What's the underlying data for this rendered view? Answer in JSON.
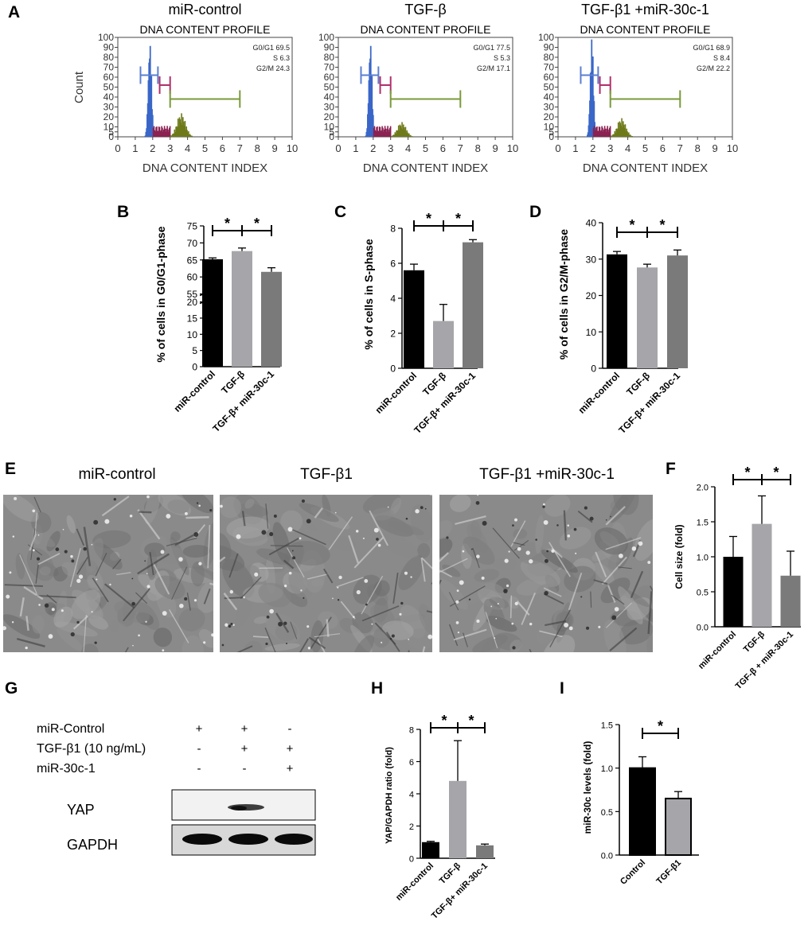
{
  "colors": {
    "black_bar": "#000000",
    "light_gray_bar": "#a6a6aa",
    "mid_gray_bar": "#7a7a7a",
    "histogram_blue": "#3a66c8",
    "histogram_maroon": "#8b2252",
    "histogram_olive": "#6e7a1a",
    "marker_blue": "#5b7fd0",
    "marker_pink": "#b0306a",
    "marker_green": "#7a9a3a"
  },
  "panel_labels": {
    "A": "A",
    "B": "B",
    "C": "C",
    "D": "D",
    "E": "E",
    "F": "F",
    "G": "G",
    "H": "H",
    "I": "I"
  },
  "panel_a": {
    "plots": [
      {
        "title": "miR-control",
        "subtitle": "DNA CONTENT PROFILE",
        "xlabel": "DNA CONTENT INDEX",
        "ylabel": "Count",
        "stats": [
          "G0/G1 69.5",
          "S 6.3",
          "G2/M 24.3"
        ]
      },
      {
        "title": "TGF-β",
        "subtitle": "DNA CONTENT PROFILE",
        "xlabel": "DNA CONTENT INDEX",
        "ylabel": "",
        "stats": [
          "G0/G1 77.5",
          "S 5.3",
          "G2/M 17.1"
        ]
      },
      {
        "title": "TGF-β1 +miR-30c-1",
        "subtitle": "DNA CONTENT PROFILE",
        "xlabel": "DNA CONTENT INDEX",
        "ylabel": "",
        "stats": [
          "G0/G1 68.9",
          "S 8.4",
          "G2/M 22.2"
        ]
      }
    ]
  },
  "panel_e": {
    "titles": [
      "miR-control",
      "TGF-β1",
      "TGF-β1 +miR-30c-1"
    ]
  },
  "panel_g": {
    "row_labels": [
      "miR-Control",
      "TGF-β1 (10 ng/mL)",
      "miR-30c-1"
    ],
    "signs": [
      [
        "+",
        "+",
        "-"
      ],
      [
        "-",
        "+",
        "+"
      ],
      [
        "-",
        "-",
        "+"
      ]
    ],
    "band_labels": [
      "YAP",
      "GAPDH"
    ]
  },
  "chart_data": [
    {
      "panel": "A",
      "type": "histogram",
      "title": "miR-control",
      "subtitle": "DNA CONTENT PROFILE",
      "xlabel": "DNA CONTENT INDEX",
      "ylabel": "Count",
      "xlim": [
        0,
        10
      ],
      "ylim": [
        0,
        100
      ],
      "xticks": [
        0,
        1,
        2,
        3,
        4,
        5,
        6,
        7,
        8,
        9,
        10
      ],
      "yticks": [
        0,
        5,
        10,
        20,
        30,
        40,
        50,
        60,
        70,
        80,
        90,
        100
      ],
      "g1_peak": {
        "center": 1.8,
        "height": 100
      },
      "g2_peak": {
        "center": 3.6,
        "height": 24
      },
      "stats": {
        "G0/G1": 69.5,
        "S": 6.3,
        "G2/M": 24.3
      }
    },
    {
      "panel": "A",
      "type": "histogram",
      "title": "TGF-β",
      "subtitle": "DNA CONTENT PROFILE",
      "xlabel": "DNA CONTENT INDEX",
      "ylabel": "",
      "xlim": [
        0,
        10
      ],
      "ylim": [
        0,
        100
      ],
      "xticks": [
        0,
        1,
        2,
        3,
        4,
        5,
        6,
        7,
        8,
        9,
        10
      ],
      "yticks": [
        0,
        5,
        10,
        20,
        30,
        40,
        50,
        60,
        70,
        80,
        90,
        100
      ],
      "g1_peak": {
        "center": 1.8,
        "height": 100
      },
      "g2_peak": {
        "center": 3.6,
        "height": 15
      },
      "stats": {
        "G0/G1": 77.5,
        "S": 5.3,
        "G2/M": 17.1
      }
    },
    {
      "panel": "A",
      "type": "histogram",
      "title": "TGF-β1 +miR-30c-1",
      "subtitle": "DNA CONTENT PROFILE",
      "xlabel": "DNA CONTENT INDEX",
      "ylabel": "",
      "xlim": [
        0,
        10
      ],
      "ylim": [
        0,
        100
      ],
      "xticks": [
        0,
        1,
        2,
        3,
        4,
        5,
        6,
        7,
        8,
        9,
        10
      ],
      "yticks": [
        0,
        5,
        10,
        20,
        30,
        40,
        50,
        60,
        70,
        80,
        90,
        100
      ],
      "g1_peak": {
        "center": 1.9,
        "height": 100
      },
      "g2_peak": {
        "center": 3.6,
        "height": 19
      },
      "stats": {
        "G0/G1": 68.9,
        "S": 8.4,
        "G2/M": 22.2
      }
    },
    {
      "panel": "B",
      "type": "bar",
      "ylabel": "% of cells in G0/G1-phase",
      "categories": [
        "miR-control",
        "TGF-β",
        "TGF-β+ miR-30c-1"
      ],
      "values": [
        65.2,
        67.6,
        61.5
      ],
      "errors": [
        0.4,
        0.9,
        1.2
      ],
      "ylim": [
        0,
        75
      ],
      "axis_break": [
        20,
        55
      ],
      "yticks": [
        0,
        5,
        10,
        15,
        20,
        55,
        60,
        65,
        70,
        75
      ],
      "significance": [
        "*",
        "*"
      ]
    },
    {
      "panel": "C",
      "type": "bar",
      "ylabel": "% of cells in S-phase",
      "categories": [
        "miR-control",
        "TGF-β",
        "TGF-β+ miR-30c-1"
      ],
      "values": [
        5.6,
        2.7,
        7.2
      ],
      "errors": [
        0.35,
        0.95,
        0.15
      ],
      "ylim": [
        0,
        8
      ],
      "yticks": [
        0,
        2,
        4,
        6,
        8
      ],
      "significance": [
        "*",
        "*"
      ]
    },
    {
      "panel": "D",
      "type": "bar",
      "ylabel": "% of cells in G2/M-phase",
      "categories": [
        "miR-control",
        "TGF-β",
        "TGF-β+ miR-30c-1"
      ],
      "values": [
        31.3,
        27.7,
        31.0
      ],
      "errors": [
        0.8,
        0.9,
        1.5
      ],
      "ylim": [
        0,
        40
      ],
      "yticks": [
        0,
        10,
        20,
        30,
        40
      ],
      "significance": [
        "*",
        "*"
      ]
    },
    {
      "panel": "F",
      "type": "bar",
      "ylabel": "Cell size (fold)",
      "categories": [
        "miR-control",
        "TGF-β",
        "TGF-β + miR-30c-1"
      ],
      "values": [
        1.0,
        1.47,
        0.73
      ],
      "errors": [
        0.29,
        0.4,
        0.35
      ],
      "ylim": [
        0,
        2
      ],
      "yticks": [
        "0.0",
        "0.5",
        "1.0",
        "1.5",
        "2.0"
      ],
      "significance": [
        "*",
        "*"
      ]
    },
    {
      "panel": "H",
      "type": "bar",
      "ylabel": "YAP/GAPDH ratio (fold)",
      "categories": [
        "miR-control",
        "TGF-β",
        "TGF-β+ miR-30c-1"
      ],
      "values": [
        1.0,
        4.8,
        0.8
      ],
      "errors": [
        0.05,
        2.5,
        0.08
      ],
      "ylim": [
        0,
        8
      ],
      "yticks": [
        0,
        2,
        4,
        6,
        8
      ],
      "significance": [
        "*",
        "*"
      ]
    },
    {
      "panel": "I",
      "type": "bar",
      "ylabel": "miR-30c levels (fold)",
      "categories": [
        "Control",
        "TGF-β1"
      ],
      "values": [
        1.0,
        0.65
      ],
      "errors": [
        0.13,
        0.08
      ],
      "ylim": [
        0,
        1.5
      ],
      "yticks": [
        "0.0",
        "0.5",
        "1.0",
        "1.5"
      ],
      "significance": [
        "*"
      ]
    }
  ]
}
